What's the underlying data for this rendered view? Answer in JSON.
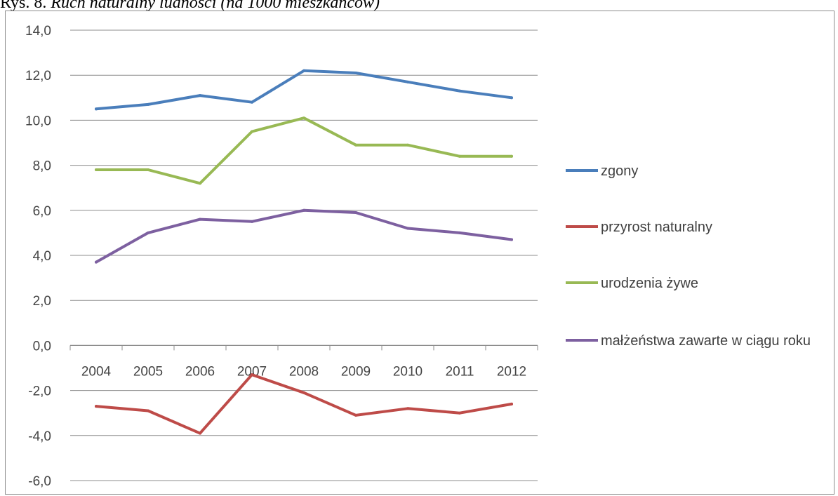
{
  "caption": {
    "lead": "Rys. 8. ",
    "rest": "Ruch naturalny ludności (na 1000 mieszkańców)"
  },
  "chart_data": {
    "type": "line",
    "title": "",
    "xlabel": "",
    "ylabel": "",
    "categories": [
      "2004",
      "2005",
      "2006",
      "2007",
      "2008",
      "2009",
      "2010",
      "2011",
      "2012"
    ],
    "ylim": [
      -6.0,
      14.0
    ],
    "yticks": [
      "14,0",
      "12,0",
      "10,0",
      "8,0",
      "6,0",
      "4,0",
      "2,0",
      "0,0",
      "-2,0",
      "-4,0",
      "-6,0"
    ],
    "grid": "horizontal",
    "legend_position": "right",
    "series": [
      {
        "name": "zgony",
        "color": "#4a7ebb",
        "values": [
          10.5,
          10.7,
          11.1,
          10.8,
          12.2,
          12.1,
          11.7,
          11.3,
          11.0
        ]
      },
      {
        "name": "przyrost naturalny",
        "color": "#be4b48",
        "values": [
          -2.7,
          -2.9,
          -3.9,
          -1.3,
          -2.1,
          -3.1,
          -2.8,
          -3.0,
          -2.6
        ]
      },
      {
        "name": "urodzenia żywe",
        "color": "#98b954",
        "values": [
          7.8,
          7.8,
          7.2,
          9.5,
          10.1,
          8.9,
          8.9,
          8.4,
          8.4
        ]
      },
      {
        "name": "małżeństwa zawarte w ciągu roku",
        "color": "#7d60a0",
        "values": [
          3.7,
          5.0,
          5.6,
          5.5,
          6.0,
          5.9,
          5.2,
          5.0,
          4.7
        ]
      }
    ]
  }
}
